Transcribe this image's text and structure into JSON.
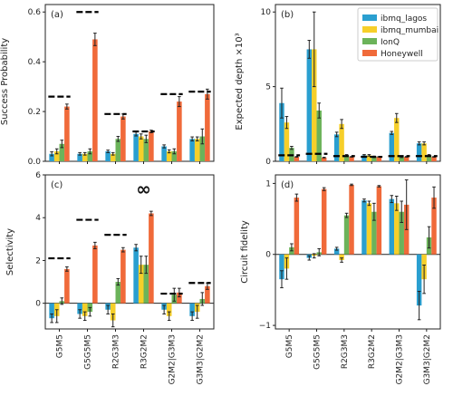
{
  "colors": {
    "ibmq_lagos": "#2a9fd0",
    "ibmq_mumbai": "#f6cf2a",
    "IonQ": "#6cb35a",
    "Honeywell": "#f06a3a",
    "bound": "#000000",
    "error": "#222222"
  },
  "legend": [
    "ibmq_lagos",
    "ibmq_mumbai",
    "IonQ",
    "Honeywell"
  ],
  "xcategories": [
    "G5M5",
    "G5G5M5",
    "R2G3M3",
    "R3G2M2",
    "G2M2|G3M3",
    "G3M3|G2M2"
  ],
  "chart_data": [
    {
      "type": "bar",
      "panel_label": "(a)",
      "ylabel": "Success Probability",
      "ylim": [
        0,
        0.63
      ],
      "yticks": [
        "0.0",
        "0.2",
        "0.4",
        "0.6"
      ],
      "ytick_values": [
        0,
        0.2,
        0.4,
        0.6
      ],
      "categories": [
        "G5M5",
        "G5G5M5",
        "R2G3M3",
        "R3G2M2",
        "G2M2|G3M3",
        "G3M3|G2M2"
      ],
      "series": [
        {
          "name": "ibmq_lagos",
          "values": [
            0.03,
            0.03,
            0.04,
            0.11,
            0.06,
            0.09
          ],
          "errors": [
            0.008,
            0.005,
            0.005,
            0.008,
            0.006,
            0.008
          ]
        },
        {
          "name": "ibmq_mumbai",
          "values": [
            0.04,
            0.03,
            0.03,
            0.1,
            0.04,
            0.09
          ],
          "errors": [
            0.01,
            0.005,
            0.005,
            0.01,
            0.006,
            0.008
          ]
        },
        {
          "name": "IonQ",
          "values": [
            0.07,
            0.04,
            0.09,
            0.09,
            0.04,
            0.1
          ],
          "errors": [
            0.015,
            0.01,
            0.01,
            0.015,
            0.01,
            0.03
          ]
        },
        {
          "name": "Honeywell",
          "values": [
            0.22,
            0.49,
            0.18,
            0.12,
            0.24,
            0.27
          ],
          "errors": [
            0.01,
            0.025,
            0.01,
            0.005,
            0.02,
            0.02
          ]
        }
      ],
      "bounds": [
        0.26,
        0.6,
        0.19,
        0.12,
        0.27,
        0.28
      ]
    },
    {
      "type": "bar",
      "panel_label": "(b)",
      "ylabel": "Expected depth ×10³",
      "ylim": [
        0,
        10.5
      ],
      "yticks": [
        "0",
        "5",
        "10"
      ],
      "ytick_values": [
        0,
        5,
        10
      ],
      "categories": [
        "G5M5",
        "G5G5M5",
        "R2G3M3",
        "R3G2M2",
        "G2M2|G3M3",
        "G3M3|G2M2"
      ],
      "series": [
        {
          "name": "ibmq_lagos",
          "values": [
            3.9,
            7.5,
            1.8,
            0.4,
            1.9,
            1.2
          ],
          "errors": [
            1.0,
            0.6,
            0.15,
            0.05,
            0.1,
            0.1
          ]
        },
        {
          "name": "ibmq_mumbai",
          "values": [
            2.6,
            7.5,
            2.5,
            0.4,
            2.9,
            1.2
          ],
          "errors": [
            0.4,
            2.5,
            0.3,
            0.05,
            0.3,
            0.1
          ]
        },
        {
          "name": "IonQ",
          "values": [
            0.9,
            3.4,
            0.4,
            0.3,
            0.3,
            0.4
          ],
          "errors": [
            0.1,
            0.5,
            0.05,
            0.05,
            0.05,
            0.05
          ]
        },
        {
          "name": "Honeywell",
          "values": [
            0.3,
            0.25,
            0.3,
            0.3,
            0.3,
            0.3
          ],
          "errors": [
            0.02,
            0.02,
            0.02,
            0.02,
            0.02,
            0.02
          ]
        }
      ],
      "bounds": [
        0.4,
        0.5,
        0.35,
        0.3,
        0.35,
        0.35
      ]
    },
    {
      "type": "bar",
      "panel_label": "(c)",
      "ylabel": "Selectivity",
      "ylim": [
        -1.2,
        6
      ],
      "yticks": [
        "0",
        "2",
        "4",
        "6"
      ],
      "ytick_values": [
        0,
        2,
        4,
        6
      ],
      "categories": [
        "G5M5",
        "G5G5M5",
        "R2G3M3",
        "R3G2M2",
        "G2M2|G3M3",
        "G3M3|G2M2"
      ],
      "series": [
        {
          "name": "ibmq_lagos",
          "values": [
            -0.7,
            -0.5,
            -0.3,
            2.6,
            -0.3,
            -0.6
          ],
          "errors": [
            0.2,
            0.2,
            0.2,
            0.15,
            0.2,
            0.2
          ]
        },
        {
          "name": "ibmq_mumbai",
          "values": [
            -0.6,
            -0.6,
            -0.8,
            1.8,
            -0.6,
            -0.4
          ],
          "errors": [
            0.3,
            0.2,
            0.3,
            0.4,
            0.2,
            0.3
          ]
        },
        {
          "name": "IonQ",
          "values": [
            0.1,
            -0.4,
            1.0,
            1.8,
            0.4,
            0.2
          ],
          "errors": [
            0.15,
            0.2,
            0.15,
            0.4,
            0.3,
            0.3
          ]
        },
        {
          "name": "Honeywell",
          "values": [
            1.6,
            2.7,
            2.5,
            4.2,
            0.5,
            0.8
          ],
          "errors": [
            0.1,
            0.15,
            0.1,
            0.1,
            0.2,
            0.15
          ]
        }
      ],
      "bounds": [
        2.1,
        3.9,
        3.2,
        null,
        0.45,
        0.95
      ],
      "annotation": "∞",
      "annotation_category": "R3G2M2",
      "annotation_y": 5.3
    },
    {
      "type": "bar",
      "panel_label": "(d)",
      "ylabel": "Circuit fidelity",
      "ylim": [
        -1.05,
        1.12
      ],
      "yticks": [
        "−1",
        "0",
        "1"
      ],
      "ytick_values": [
        -1,
        0,
        1
      ],
      "categories": [
        "G5M5",
        "G5G5M5",
        "R2G3M3",
        "R3G2M2",
        "G2M2|G3M3",
        "G3M3|G2M2"
      ],
      "series": [
        {
          "name": "ibmq_lagos",
          "values": [
            -0.35,
            -0.05,
            0.08,
            0.76,
            0.78,
            -0.72
          ],
          "errors": [
            0.12,
            0.03,
            0.02,
            0.02,
            0.05,
            0.2
          ]
        },
        {
          "name": "ibmq_mumbai",
          "values": [
            -0.2,
            -0.02,
            -0.08,
            0.72,
            0.72,
            -0.35
          ],
          "errors": [
            0.15,
            0.03,
            0.03,
            0.03,
            0.1,
            0.2
          ]
        },
        {
          "name": "IonQ",
          "values": [
            0.1,
            0.03,
            0.55,
            0.6,
            0.6,
            0.24
          ],
          "errors": [
            0.05,
            0.05,
            0.03,
            0.12,
            0.15,
            0.15
          ]
        },
        {
          "name": "Honeywell",
          "values": [
            0.8,
            0.92,
            0.98,
            0.96,
            0.7,
            0.8
          ],
          "errors": [
            0.05,
            0.02,
            0.01,
            0.01,
            0.35,
            0.15
          ]
        }
      ],
      "bounds": []
    }
  ]
}
